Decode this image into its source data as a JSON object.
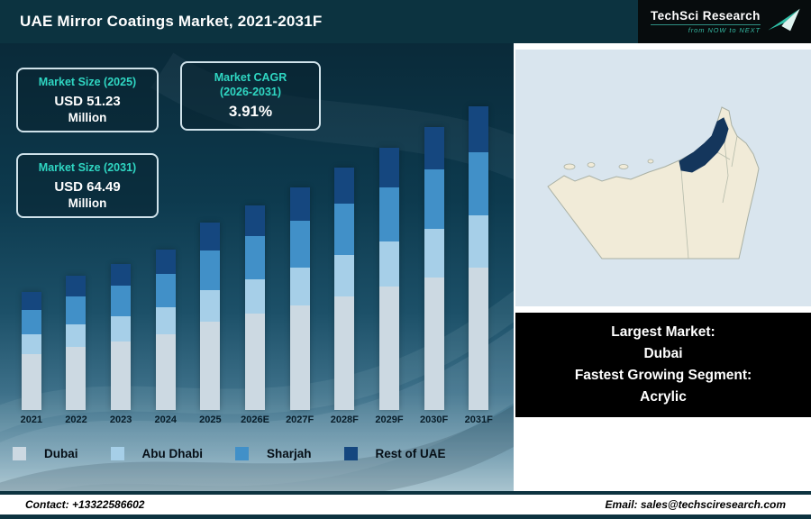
{
  "header": {
    "title": "UAE Mirror Coatings Market, 2021-2031F",
    "logo": {
      "name": "TechSci Research",
      "tagline": "from NOW to NEXT"
    }
  },
  "stat_boxes": {
    "size_2025": {
      "label": "Market Size (2025)",
      "value": "USD 51.23",
      "unit": "Million"
    },
    "cagr": {
      "label_line1": "Market CAGR",
      "label_line2": "(2026-2031)",
      "value": "3.91%"
    },
    "size_2031": {
      "label": "Market Size (2031)",
      "value": "USD 64.49",
      "unit": "Million"
    }
  },
  "chart_data": {
    "type": "bar",
    "stacked": true,
    "title": "UAE Mirror Coatings Market, 2021-2031F",
    "unit": "USD Million",
    "categories": [
      "2021",
      "2022",
      "2023",
      "2024",
      "2025",
      "2026E",
      "2027F",
      "2028F",
      "2029F",
      "2030F",
      "2031F"
    ],
    "series": [
      {
        "name": "Dubai",
        "color": "#ccd9e2",
        "values": [
          20.4,
          21.2,
          21.9,
          22.7,
          24.1,
          25.0,
          26.0,
          27.0,
          28.1,
          29.2,
          30.3
        ]
      },
      {
        "name": "Abu Dhabi",
        "color": "#a6cfe8",
        "values": [
          7.4,
          7.7,
          7.9,
          8.2,
          8.7,
          9.0,
          9.4,
          9.8,
          10.2,
          10.6,
          11.0
        ]
      },
      {
        "name": "Sharjah",
        "color": "#4190c8",
        "values": [
          9.1,
          9.5,
          9.8,
          10.1,
          10.8,
          11.2,
          11.6,
          12.1,
          12.5,
          13.0,
          13.5
        ]
      },
      {
        "name": "Rest of UAE",
        "color": "#15477f",
        "values": [
          6.5,
          6.8,
          7.0,
          7.2,
          7.7,
          8.0,
          8.3,
          8.6,
          9.0,
          9.3,
          9.7
        ]
      }
    ],
    "ylim_render": [
      30,
      70
    ],
    "gridlines": false,
    "value_labels_shown": false,
    "legend_position": "bottom",
    "xlabel": "",
    "ylabel": ""
  },
  "map": {
    "country": "United Arab Emirates",
    "highlighted_region": "Dubai"
  },
  "info_box": {
    "lines": [
      "Largest Market:",
      "Dubai",
      "Fastest Growing Segment:",
      "Acrylic"
    ]
  },
  "footer": {
    "contact": "Contact: +13322586602",
    "email": "Email: sales@techsciresearch.com"
  }
}
